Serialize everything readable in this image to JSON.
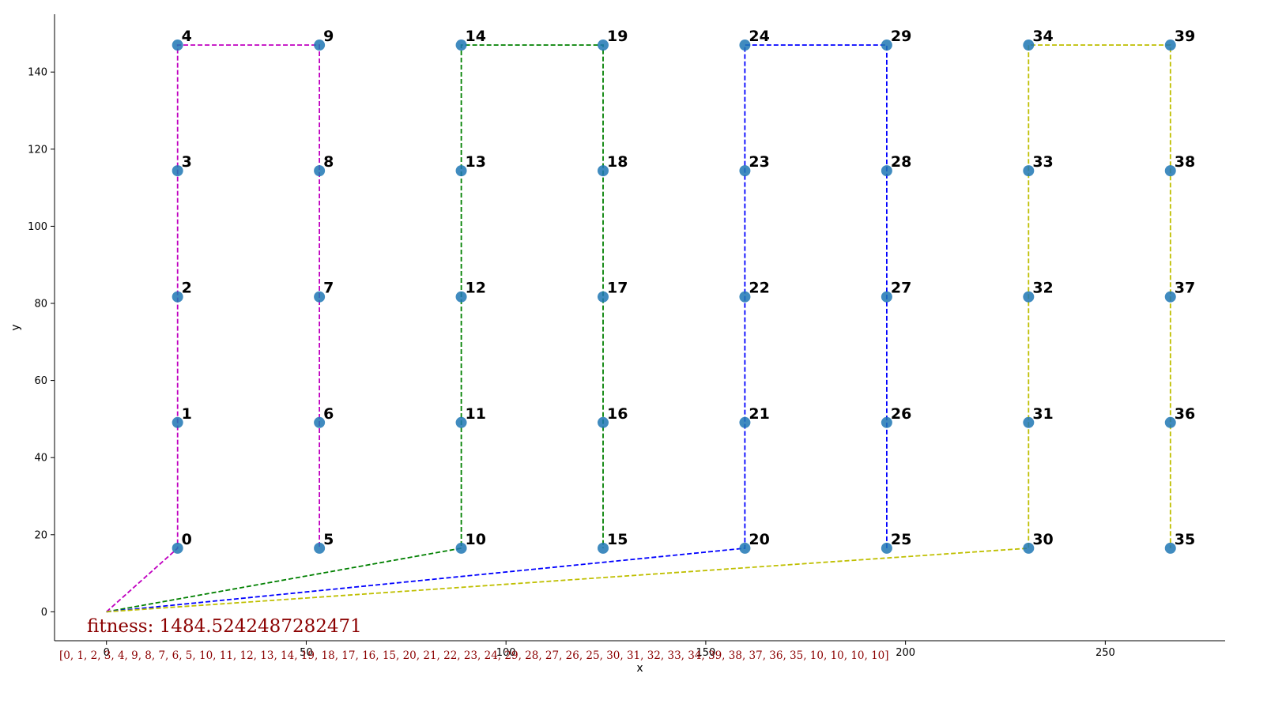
{
  "chart_data": {
    "type": "scatter",
    "xlabel": "x",
    "ylabel": "y",
    "xlim": [
      -13,
      280
    ],
    "ylim": [
      -7.5,
      155
    ],
    "x_ticks": [
      0,
      50,
      100,
      150,
      200,
      250
    ],
    "y_ticks": [
      0,
      20,
      40,
      60,
      80,
      100,
      120,
      140
    ],
    "grid": false,
    "depot": {
      "x": 0,
      "y": 0
    },
    "point_color": "#1f77b4",
    "points": [
      {
        "id": "0",
        "x": 17.8,
        "y": 16.5
      },
      {
        "id": "1",
        "x": 17.8,
        "y": 49.1
      },
      {
        "id": "2",
        "x": 17.8,
        "y": 81.7
      },
      {
        "id": "3",
        "x": 17.8,
        "y": 114.4
      },
      {
        "id": "4",
        "x": 17.8,
        "y": 147.0
      },
      {
        "id": "5",
        "x": 53.3,
        "y": 16.5
      },
      {
        "id": "6",
        "x": 53.3,
        "y": 49.1
      },
      {
        "id": "7",
        "x": 53.3,
        "y": 81.7
      },
      {
        "id": "8",
        "x": 53.3,
        "y": 114.4
      },
      {
        "id": "9",
        "x": 53.3,
        "y": 147.0
      },
      {
        "id": "10",
        "x": 88.8,
        "y": 16.5
      },
      {
        "id": "11",
        "x": 88.8,
        "y": 49.1
      },
      {
        "id": "12",
        "x": 88.8,
        "y": 81.7
      },
      {
        "id": "13",
        "x": 88.8,
        "y": 114.4
      },
      {
        "id": "14",
        "x": 88.8,
        "y": 147.0
      },
      {
        "id": "15",
        "x": 124.3,
        "y": 16.5
      },
      {
        "id": "16",
        "x": 124.3,
        "y": 49.1
      },
      {
        "id": "17",
        "x": 124.3,
        "y": 81.7
      },
      {
        "id": "18",
        "x": 124.3,
        "y": 114.4
      },
      {
        "id": "19",
        "x": 124.3,
        "y": 147.0
      },
      {
        "id": "20",
        "x": 159.8,
        "y": 16.5
      },
      {
        "id": "21",
        "x": 159.8,
        "y": 49.1
      },
      {
        "id": "22",
        "x": 159.8,
        "y": 81.7
      },
      {
        "id": "23",
        "x": 159.8,
        "y": 114.4
      },
      {
        "id": "24",
        "x": 159.8,
        "y": 147.0
      },
      {
        "id": "25",
        "x": 195.3,
        "y": 16.5
      },
      {
        "id": "26",
        "x": 195.3,
        "y": 49.1
      },
      {
        "id": "27",
        "x": 195.3,
        "y": 81.7
      },
      {
        "id": "28",
        "x": 195.3,
        "y": 114.4
      },
      {
        "id": "29",
        "x": 195.3,
        "y": 147.0
      },
      {
        "id": "30",
        "x": 230.8,
        "y": 16.5
      },
      {
        "id": "31",
        "x": 230.8,
        "y": 49.1
      },
      {
        "id": "32",
        "x": 230.8,
        "y": 81.7
      },
      {
        "id": "33",
        "x": 230.8,
        "y": 114.4
      },
      {
        "id": "34",
        "x": 230.8,
        "y": 147.0
      },
      {
        "id": "35",
        "x": 266.3,
        "y": 16.5
      },
      {
        "id": "36",
        "x": 266.3,
        "y": 49.1
      },
      {
        "id": "37",
        "x": 266.3,
        "y": 81.7
      },
      {
        "id": "38",
        "x": 266.3,
        "y": 114.4
      },
      {
        "id": "39",
        "x": 266.3,
        "y": 147.0
      }
    ],
    "routes": [
      {
        "color": "#c000c0",
        "path": [
          "depot",
          "0",
          "1",
          "2",
          "3",
          "4",
          "9",
          "8",
          "7",
          "6",
          "5"
        ]
      },
      {
        "color": "#008000",
        "path": [
          "depot",
          "10",
          "11",
          "12",
          "13",
          "14",
          "19",
          "18",
          "17",
          "16",
          "15"
        ]
      },
      {
        "color": "#0000ff",
        "path": [
          "depot",
          "20",
          "21",
          "22",
          "23",
          "24",
          "29",
          "28",
          "27",
          "26",
          "25"
        ]
      },
      {
        "color": "#bfbf00",
        "path": [
          "depot",
          "30",
          "31",
          "32",
          "33",
          "34",
          "39",
          "38",
          "37",
          "36",
          "35"
        ]
      }
    ]
  },
  "annotations": {
    "fitness": "fitness: 1484.5242487282471",
    "sequence": "[0, 1, 2, 3, 4, 9, 8, 7, 6, 5, 10, 11, 12, 13, 14, 19, 18, 17, 16, 15, 20, 21, 22, 23, 24, 29, 28, 27, 26, 25, 30, 31, 32, 33, 34, 39, 38, 37, 36, 35, 10, 10, 10, 10]",
    "color": "#8b0000"
  }
}
